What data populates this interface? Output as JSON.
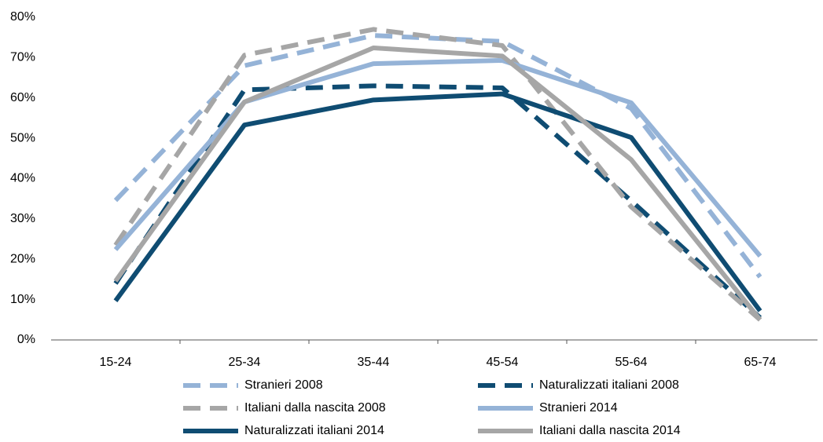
{
  "chart_data": {
    "type": "line",
    "categories": [
      "15-24",
      "25-34",
      "35-44",
      "45-54",
      "55-64",
      "65-74"
    ],
    "series": [
      {
        "name": "Stranieri 2008",
        "color": "#95b3d7",
        "dashed": true,
        "values": [
          34.6,
          68,
          75.5,
          74,
          57.4,
          15.6
        ]
      },
      {
        "name": "Naturalizzati italiani 2008",
        "color": "#0f4c72",
        "dashed": true,
        "values": [
          14,
          62,
          63,
          62.5,
          34.5,
          5.5
        ]
      },
      {
        "name": "Italiani dalla nascita 2008",
        "color": "#a6a6a6",
        "dashed": true,
        "values": [
          23.5,
          70.6,
          77,
          73,
          33,
          5
        ]
      },
      {
        "name": "Stranieri 2014",
        "color": "#95b3d7",
        "dashed": false,
        "values": [
          22.4,
          59,
          68.5,
          69.3,
          58.8,
          20.8
        ]
      },
      {
        "name": "Naturalizzati italiani 2014",
        "color": "#0f4c72",
        "dashed": false,
        "values": [
          9.7,
          53.3,
          59.5,
          61,
          50.2,
          7.2
        ]
      },
      {
        "name": "Italiani dalla nascita 2014",
        "color": "#a6a6a6",
        "dashed": false,
        "values": [
          14.6,
          59,
          72.4,
          70.4,
          44.7,
          5
        ]
      }
    ],
    "ylim": [
      0,
      80
    ],
    "yticks": [
      {
        "value": 0,
        "label": "0%"
      },
      {
        "value": 10,
        "label": "10%"
      },
      {
        "value": 20,
        "label": "20%"
      },
      {
        "value": 30,
        "label": "30%"
      },
      {
        "value": 40,
        "label": "40%"
      },
      {
        "value": 50,
        "label": "50%"
      },
      {
        "value": 60,
        "label": "60%"
      },
      {
        "value": 70,
        "label": "70%"
      },
      {
        "value": 80,
        "label": "80%"
      }
    ],
    "grid": false
  }
}
